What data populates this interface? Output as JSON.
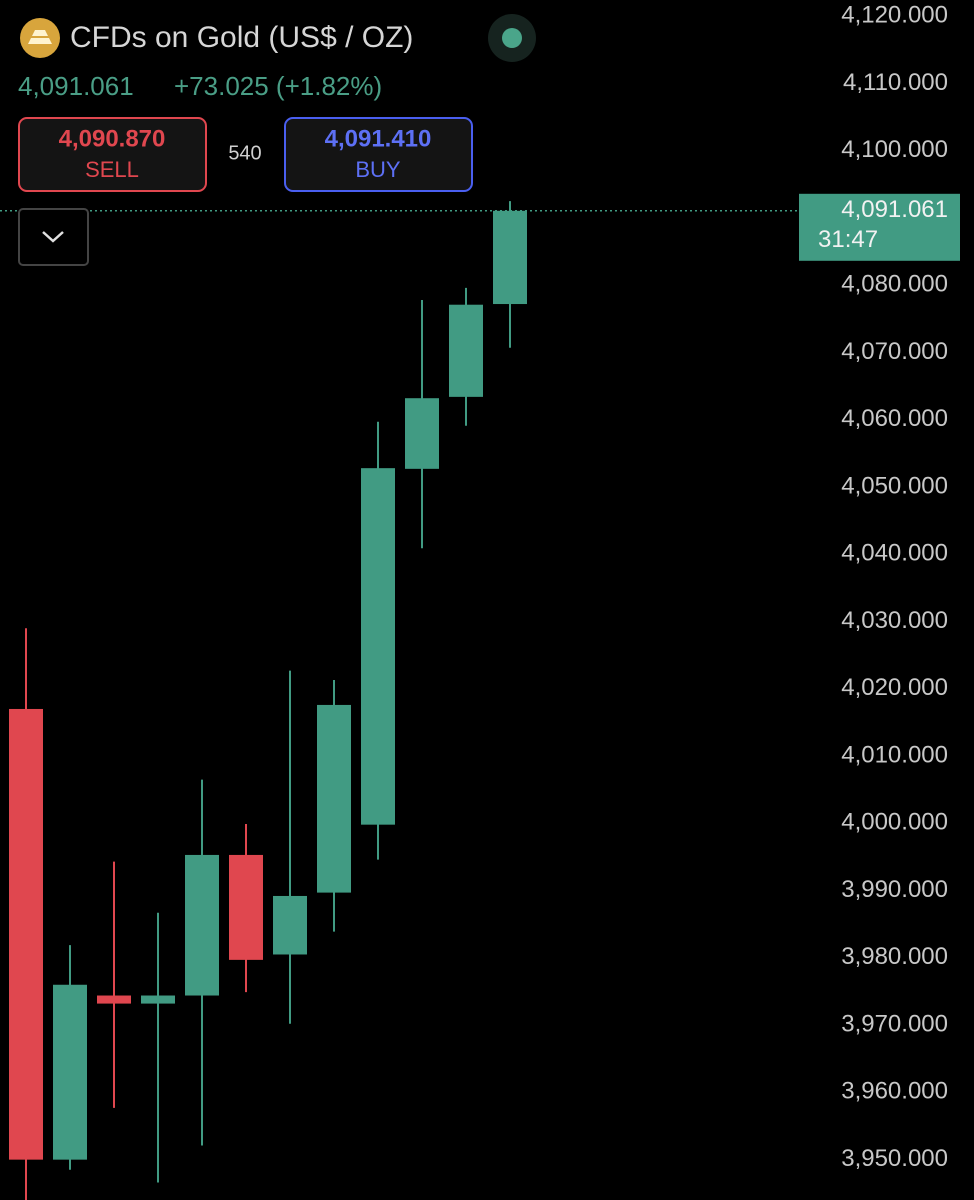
{
  "header": {
    "title": "CFDs on Gold (US$ / OZ)",
    "price": "4,091.061",
    "change": "+73.025 (+1.82%)",
    "sell_price": "4,090.870",
    "sell_label": "SELL",
    "spread": "540",
    "buy_price": "4,091.410",
    "buy_label": "BUY"
  },
  "chart_data": {
    "type": "candlestick",
    "up_color": "#419b83",
    "down_color": "#e0474f",
    "open": [
      4017.0,
      3950.0,
      3974.4,
      3973.2,
      3974.4,
      3995.3,
      3980.5,
      3989.7,
      3999.8,
      4052.7,
      4063.4,
      4077.2
    ],
    "high": [
      4029.0,
      3981.9,
      3994.3,
      3986.7,
      4006.5,
      3999.9,
      4022.7,
      4021.3,
      4059.7,
      4077.8,
      4079.6,
      4092.5
    ],
    "low": [
      3944.0,
      3948.5,
      3957.7,
      3946.6,
      3952.1,
      3974.9,
      3970.2,
      3983.9,
      3994.6,
      4040.9,
      4059.1,
      4070.7
    ],
    "close": [
      3950.0,
      3976.0,
      3973.2,
      3974.4,
      3995.3,
      3979.7,
      3989.2,
      4017.6,
      4052.8,
      4063.2,
      4077.1,
      4091.061
    ],
    "ylim": [
      3944,
      4122.4
    ],
    "yticks": [
      {
        "value": 4120,
        "label": "4,120.000"
      },
      {
        "value": 4110,
        "label": "4,110.000"
      },
      {
        "value": 4100,
        "label": "4,100.000"
      },
      {
        "value": 4080,
        "label": "4,080.000"
      },
      {
        "value": 4070,
        "label": "4,070.000"
      },
      {
        "value": 4060,
        "label": "4,060.000"
      },
      {
        "value": 4050,
        "label": "4,050.000"
      },
      {
        "value": 4040,
        "label": "4,040.000"
      },
      {
        "value": 4030,
        "label": "4,030.000"
      },
      {
        "value": 4020,
        "label": "4,020.000"
      },
      {
        "value": 4010,
        "label": "4,010.000"
      },
      {
        "value": 4000,
        "label": "4,000.000"
      },
      {
        "value": 3990,
        "label": "3,990.000"
      },
      {
        "value": 3980,
        "label": "3,980.000"
      },
      {
        "value": 3970,
        "label": "3,970.000"
      },
      {
        "value": 3960,
        "label": "3,960.000"
      },
      {
        "value": 3950,
        "label": "3,950.000"
      }
    ],
    "last_price": {
      "value": 4091.061,
      "label": "4,091.061"
    },
    "countdown": "31:47"
  }
}
